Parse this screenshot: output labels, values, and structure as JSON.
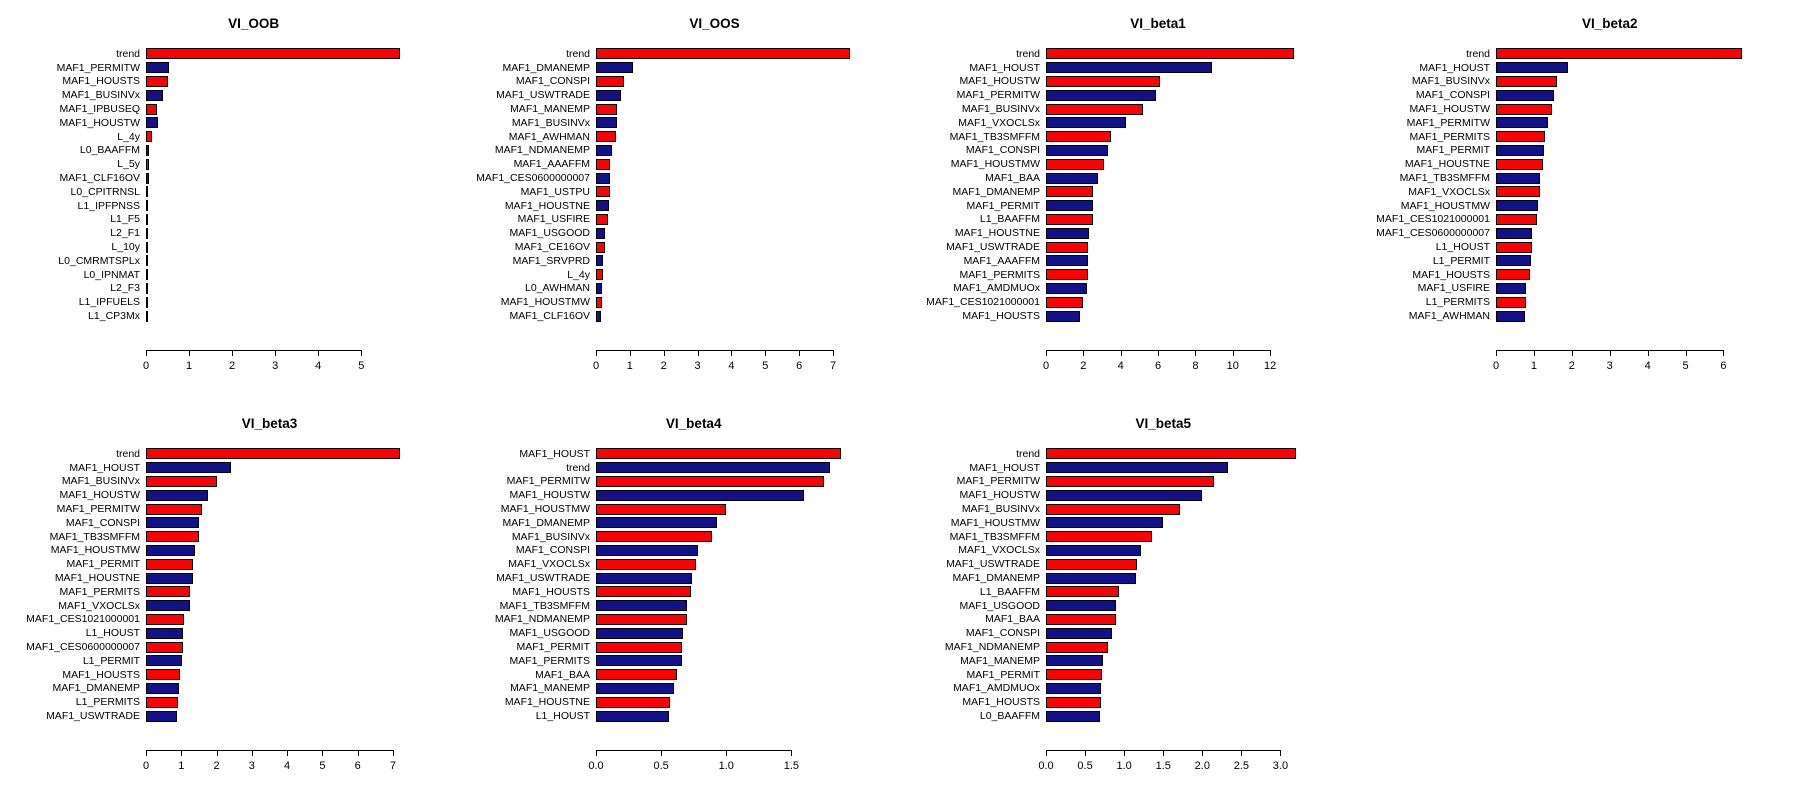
{
  "page": {
    "background": "#ffffff"
  },
  "colors": {
    "bar_red": "#ff0000",
    "bar_navy": "#11118c",
    "bar_border": "#000000",
    "axis": "#000000",
    "text": "#000000"
  },
  "layout_hints": {
    "grid": "4 columns x 2 rows, 7 charts",
    "orientation": "horizontal bars, alternating red/navy from top",
    "grid_lines": "off",
    "legend": "none"
  },
  "chart_data": [
    {
      "type": "bar",
      "orientation": "horizontal",
      "title": "VI_OOB",
      "xlabel": "",
      "ylabel": "",
      "xlim": [
        0,
        5.9
      ],
      "ticks": [
        0,
        1,
        2,
        3,
        4,
        5
      ],
      "tick_labels": [
        "0",
        "1",
        "2",
        "3",
        "4",
        "5"
      ],
      "categories": [
        "trend",
        "MAF1_PERMITW",
        "MAF1_HOUSTS",
        "MAF1_BUSINVx",
        "MAF1_IPBUSEQ",
        "MAF1_HOUSTW",
        "L_4y",
        "L0_BAAFFM",
        "L_5y",
        "MAF1_CLF16OV",
        "L0_CPITRNSL",
        "L1_IPFPNSS",
        "L1_F5",
        "L2_F1",
        "L_10y",
        "L0_CMRMTSPLx",
        "L0_IPNMAT",
        "L2_F3",
        "L1_IPFUELS",
        "L1_CP3Mx"
      ],
      "values": [
        5.9,
        0.53,
        0.5,
        0.39,
        0.25,
        0.28,
        0.14,
        0.08,
        0.07,
        0.07,
        0.04,
        0.02,
        0.02,
        0.02,
        0.02,
        0.02,
        0.03,
        0.03,
        0.03,
        0.03
      ]
    },
    {
      "type": "bar",
      "orientation": "horizontal",
      "title": "VI_OOS",
      "xlabel": "",
      "ylabel": "",
      "xlim": [
        0,
        7.5
      ],
      "ticks": [
        0,
        1,
        2,
        3,
        4,
        5,
        6,
        7
      ],
      "tick_labels": [
        "0",
        "1",
        "2",
        "3",
        "4",
        "5",
        "6",
        "7"
      ],
      "categories": [
        "trend",
        "MAF1_DMANEMP",
        "MAF1_CONSPI",
        "MAF1_USWTRADE",
        "MAF1_MANEMP",
        "MAF1_BUSINVx",
        "MAF1_AWHMAN",
        "MAF1_NDMANEMP",
        "MAF1_AAAFFM",
        "MAF1_CES0600000007",
        "MAF1_USTPU",
        "MAF1_HOUSTNE",
        "MAF1_USFIRE",
        "MAF1_USGOOD",
        "MAF1_CE16OV",
        "MAF1_SRVPRD",
        "L_4y",
        "L0_AWHMAN",
        "MAF1_HOUSTMW",
        "MAF1_CLF16OV"
      ],
      "values": [
        7.5,
        1.08,
        0.84,
        0.74,
        0.62,
        0.62,
        0.6,
        0.47,
        0.41,
        0.41,
        0.4,
        0.37,
        0.36,
        0.28,
        0.27,
        0.22,
        0.21,
        0.17,
        0.17,
        0.14
      ]
    },
    {
      "type": "bar",
      "orientation": "horizontal",
      "title": "VI_beta1",
      "xlabel": "",
      "ylabel": "",
      "xlim": [
        0,
        13.6
      ],
      "ticks": [
        0,
        2,
        4,
        6,
        8,
        10,
        12
      ],
      "tick_labels": [
        "0",
        "2",
        "4",
        "6",
        "8",
        "10",
        "12"
      ],
      "categories": [
        "trend",
        "MAF1_HOUST",
        "MAF1_HOUSTW",
        "MAF1_PERMITW",
        "MAF1_BUSINVx",
        "MAF1_VXOCLSx",
        "MAF1_TB3SMFFM",
        "MAF1_CONSPI",
        "MAF1_HOUSTMW",
        "MAF1_BAA",
        "MAF1_DMANEMP",
        "MAF1_PERMIT",
        "L1_BAAFFM",
        "MAF1_HOUSTNE",
        "MAF1_USWTRADE",
        "MAF1_AAAFFM",
        "MAF1_PERMITS",
        "MAF1_AMDMUOx",
        "MAF1_CES1021000001",
        "MAF1_HOUSTS"
      ],
      "values": [
        13.3,
        8.9,
        6.1,
        5.9,
        5.2,
        4.3,
        3.5,
        3.3,
        3.1,
        2.8,
        2.5,
        2.5,
        2.5,
        2.3,
        2.25,
        2.25,
        2.25,
        2.2,
        2.0,
        1.8
      ]
    },
    {
      "type": "bar",
      "orientation": "horizontal",
      "title": "VI_beta2",
      "xlabel": "",
      "ylabel": "",
      "xlim": [
        0,
        6.7
      ],
      "ticks": [
        0,
        1,
        2,
        3,
        4,
        5,
        6
      ],
      "tick_labels": [
        "0",
        "1",
        "2",
        "3",
        "4",
        "5",
        "6"
      ],
      "categories": [
        "trend",
        "MAF1_HOUST",
        "MAF1_BUSINVx",
        "MAF1_CONSPI",
        "MAF1_HOUSTW",
        "MAF1_PERMITW",
        "MAF1_PERMITS",
        "MAF1_PERMIT",
        "MAF1_HOUSTNE",
        "MAF1_TB3SMFFM",
        "MAF1_VXOCLSx",
        "MAF1_HOUSTMW",
        "MAF1_CES1021000001",
        "MAF1_CES0600000007",
        "L1_HOUST",
        "L1_PERMIT",
        "MAF1_HOUSTS",
        "MAF1_USFIRE",
        "L1_PERMITS",
        "MAF1_AWHMAN"
      ],
      "values": [
        6.5,
        1.9,
        1.6,
        1.54,
        1.49,
        1.36,
        1.28,
        1.27,
        1.25,
        1.17,
        1.16,
        1.12,
        1.09,
        0.96,
        0.95,
        0.93,
        0.9,
        0.8,
        0.79,
        0.77
      ]
    },
    {
      "type": "bar",
      "orientation": "horizontal",
      "title": "VI_beta3",
      "xlabel": "",
      "ylabel": "",
      "xlim": [
        0,
        7.2
      ],
      "ticks": [
        0,
        1,
        2,
        3,
        4,
        5,
        6,
        7
      ],
      "tick_labels": [
        "0",
        "1",
        "2",
        "3",
        "4",
        "5",
        "6",
        "7"
      ],
      "categories": [
        "trend",
        "MAF1_HOUST",
        "MAF1_BUSINVx",
        "MAF1_HOUSTW",
        "MAF1_PERMITW",
        "MAF1_CONSPI",
        "MAF1_TB3SMFFM",
        "MAF1_HOUSTMW",
        "MAF1_PERMIT",
        "MAF1_HOUSTNE",
        "MAF1_PERMITS",
        "MAF1_VXOCLSx",
        "MAF1_CES1021000001",
        "L1_HOUST",
        "MAF1_CES0600000007",
        "L1_PERMIT",
        "MAF1_HOUSTS",
        "MAF1_DMANEMP",
        "L1_PERMITS",
        "MAF1_USWTRADE"
      ],
      "values": [
        7.2,
        2.4,
        2.0,
        1.76,
        1.6,
        1.5,
        1.5,
        1.4,
        1.33,
        1.33,
        1.25,
        1.25,
        1.08,
        1.05,
        1.04,
        1.02,
        0.96,
        0.93,
        0.9,
        0.88
      ]
    },
    {
      "type": "bar",
      "orientation": "horizontal",
      "title": "VI_beta4",
      "xlabel": "",
      "ylabel": "",
      "xlim": [
        0,
        1.95
      ],
      "ticks": [
        0,
        0.5,
        1.0,
        1.5
      ],
      "tick_labels": [
        "0.0",
        "0.5",
        "1.0",
        "1.5"
      ],
      "categories": [
        "MAF1_HOUST",
        "trend",
        "MAF1_PERMITW",
        "MAF1_HOUSTW",
        "MAF1_HOUSTMW",
        "MAF1_DMANEMP",
        "MAF1_BUSINVx",
        "MAF1_CONSPI",
        "MAF1_VXOCLSx",
        "MAF1_USWTRADE",
        "MAF1_HOUSTS",
        "MAF1_TB3SMFFM",
        "MAF1_NDMANEMP",
        "MAF1_USGOOD",
        "MAF1_PERMIT",
        "MAF1_PERMITS",
        "MAF1_BAA",
        "MAF1_MANEMP",
        "MAF1_HOUSTNE",
        "L1_HOUST"
      ],
      "values": [
        1.88,
        1.8,
        1.75,
        1.6,
        1.0,
        0.93,
        0.89,
        0.78,
        0.77,
        0.74,
        0.73,
        0.7,
        0.7,
        0.67,
        0.66,
        0.66,
        0.62,
        0.6,
        0.57,
        0.56
      ]
    },
    {
      "type": "bar",
      "orientation": "horizontal",
      "title": "VI_beta5",
      "xlabel": "",
      "ylabel": "",
      "xlim": [
        0,
        3.25
      ],
      "ticks": [
        0,
        0.5,
        1.0,
        1.5,
        2.0,
        2.5,
        3.0
      ],
      "tick_labels": [
        "0.0",
        "0.5",
        "1.0",
        "1.5",
        "2.0",
        "2.5",
        "3.0"
      ],
      "categories": [
        "trend",
        "MAF1_HOUST",
        "MAF1_PERMITW",
        "MAF1_HOUSTW",
        "MAF1_BUSINVx",
        "MAF1_HOUSTMW",
        "MAF1_TB3SMFFM",
        "MAF1_VXOCLSx",
        "MAF1_USWTRADE",
        "MAF1_DMANEMP",
        "L1_BAAFFM",
        "MAF1_USGOOD",
        "MAF1_BAA",
        "MAF1_CONSPI",
        "MAF1_NDMANEMP",
        "MAF1_MANEMP",
        "MAF1_PERMIT",
        "MAF1_AMDMUOx",
        "MAF1_HOUSTS",
        "L0_BAAFFM"
      ],
      "values": [
        3.2,
        2.33,
        2.15,
        2.0,
        1.71,
        1.5,
        1.36,
        1.21,
        1.17,
        1.15,
        0.93,
        0.9,
        0.89,
        0.85,
        0.79,
        0.73,
        0.72,
        0.71,
        0.7,
        0.69
      ]
    }
  ]
}
